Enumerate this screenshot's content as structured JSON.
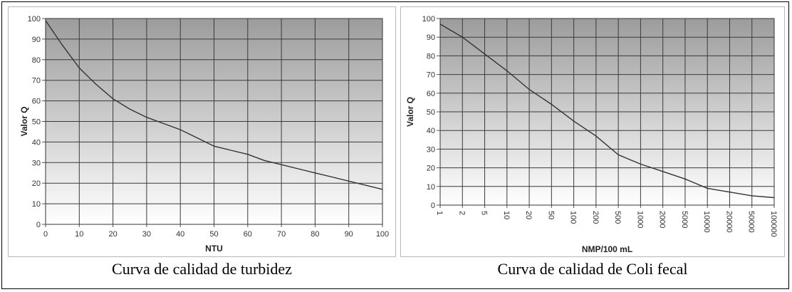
{
  "chart_data": [
    {
      "type": "line",
      "title": "",
      "caption": "Curva de calidad de turbidez",
      "xlabel": "NTU",
      "ylabel": "Valor Q",
      "xlim": [
        0,
        100
      ],
      "ylim": [
        0,
        100
      ],
      "x_ticks": [
        "0",
        "10",
        "20",
        "30",
        "40",
        "50",
        "60",
        "70",
        "80",
        "90",
        "100"
      ],
      "y_ticks": [
        "0",
        "10",
        "20",
        "30",
        "40",
        "50",
        "60",
        "70",
        "80",
        "90",
        "100"
      ],
      "grid": true,
      "series": [
        {
          "x": [
            0,
            5,
            10,
            15,
            20,
            25,
            30,
            35,
            40,
            45,
            50,
            55,
            60,
            65,
            70,
            75,
            80,
            85,
            90,
            95,
            100
          ],
          "y": [
            99,
            87,
            76,
            68,
            61,
            56,
            52,
            49,
            46,
            42,
            38,
            36,
            34,
            31,
            29,
            27,
            25,
            23,
            21,
            19,
            17
          ]
        }
      ]
    },
    {
      "type": "line",
      "title": "",
      "caption": "Curva de calidad de Coli fecal",
      "xlabel": "NMP/100 mL",
      "ylabel": "Valor Q",
      "ylim": [
        0,
        100
      ],
      "categories": [
        "1",
        "2",
        "5",
        "10",
        "20",
        "50",
        "100",
        "200",
        "500",
        "1000",
        "2000",
        "5000",
        "10000",
        "20000",
        "50000",
        "100000"
      ],
      "y_ticks": [
        "0",
        "10",
        "20",
        "30",
        "40",
        "50",
        "60",
        "70",
        "80",
        "90",
        "100"
      ],
      "grid": true,
      "series": [
        {
          "values": [
            97,
            90,
            81,
            72,
            62,
            54,
            45,
            37,
            27,
            22,
            18,
            14,
            9,
            7,
            5,
            4
          ]
        }
      ]
    }
  ]
}
